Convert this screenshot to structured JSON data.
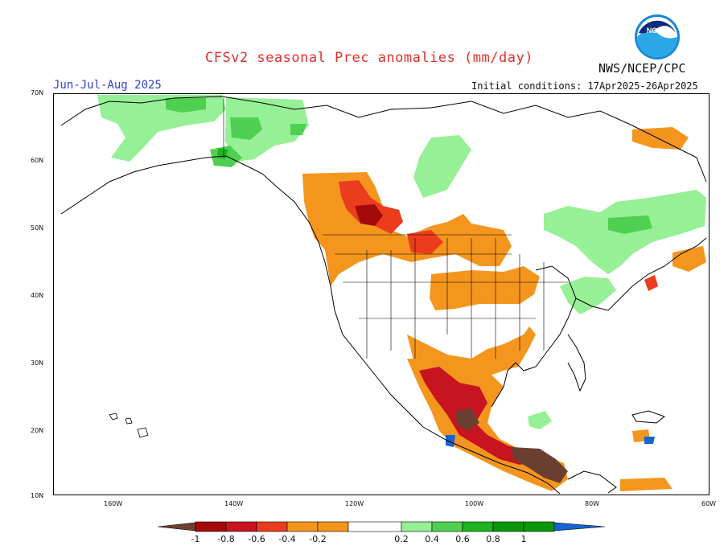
{
  "header": {
    "title": "CFSv2 seasonal Prec anomalies (mm/day)",
    "agency": "NWS/NCEP/CPC",
    "season": "Jun-Jul-Aug 2025",
    "initial_conditions": "Initial conditions: 17Apr2025-26Apr2025",
    "logo_text": "NOAA"
  },
  "map": {
    "lat_labels": [
      "70N",
      "60N",
      "50N",
      "40N",
      "30N",
      "20N",
      "10N"
    ],
    "lon_labels": [
      "160W",
      "140W",
      "120W",
      "100W",
      "80W",
      "60W"
    ]
  },
  "legend": {
    "labels": [
      "-1",
      "-0.8",
      "-0.6",
      "-0.4",
      "-0.2",
      "0.2",
      "0.4",
      "0.6",
      "0.8",
      "1"
    ],
    "colors": {
      "below_min": "#6b3f2f",
      "n1": "#a50a0a",
      "n2": "#c8141e",
      "n3": "#ec3c1e",
      "n4": "#f4961e",
      "p1": "#96f096",
      "p2": "#50d050",
      "p3": "#1eb41e",
      "p4": "#0a960a",
      "above_max": "#1464d2"
    }
  }
}
